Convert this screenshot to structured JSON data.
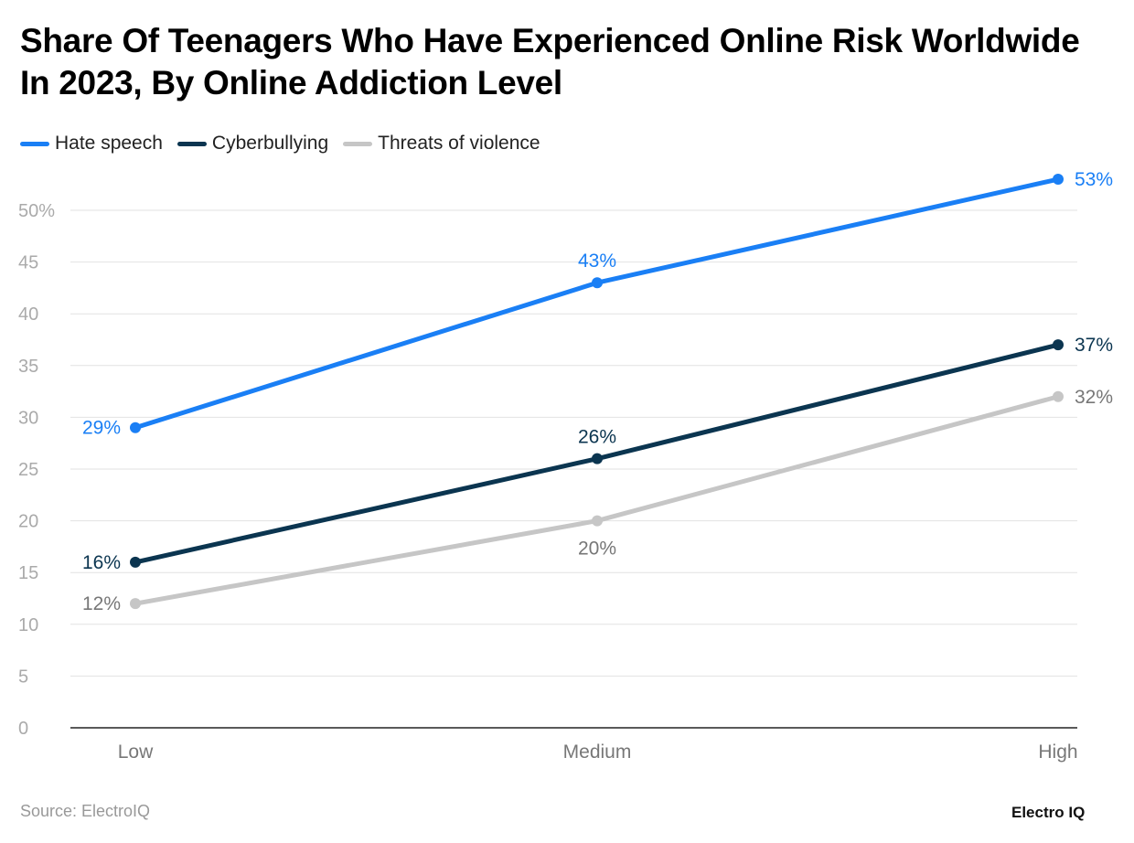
{
  "title": "Share Of Teenagers Who Have Experienced Online Risk Worldwide In 2023, By Online Addiction Level",
  "source": "Source: ElectroIQ",
  "logo": "Electro IQ",
  "chart_data": {
    "type": "line",
    "title": "Share Of Teenagers Who Have Experienced Online Risk Worldwide In 2023, By Online Addiction Level",
    "categories": [
      "Low",
      "Medium",
      "High"
    ],
    "ylim": [
      0,
      50
    ],
    "yticks": [
      "0",
      "5",
      "10",
      "15",
      "20",
      "25",
      "30",
      "35",
      "40",
      "45",
      "50%"
    ],
    "grid": true,
    "legend_position": "top-left",
    "series": [
      {
        "name": "Hate speech",
        "values": [
          29,
          43,
          53
        ],
        "labels": [
          "29%",
          "43%",
          "53%"
        ],
        "color": "#1a7ff5",
        "label_color": "#1a7ff5"
      },
      {
        "name": "Cyberbullying",
        "values": [
          16,
          26,
          37
        ],
        "labels": [
          "16%",
          "26%",
          "37%"
        ],
        "color": "#0b3550",
        "label_color": "#0b3550"
      },
      {
        "name": "Threats of violence",
        "values": [
          12,
          20,
          32
        ],
        "labels": [
          "12%",
          "20%",
          "32%"
        ],
        "color": "#c6c6c6",
        "label_color": "#777777"
      }
    ]
  }
}
